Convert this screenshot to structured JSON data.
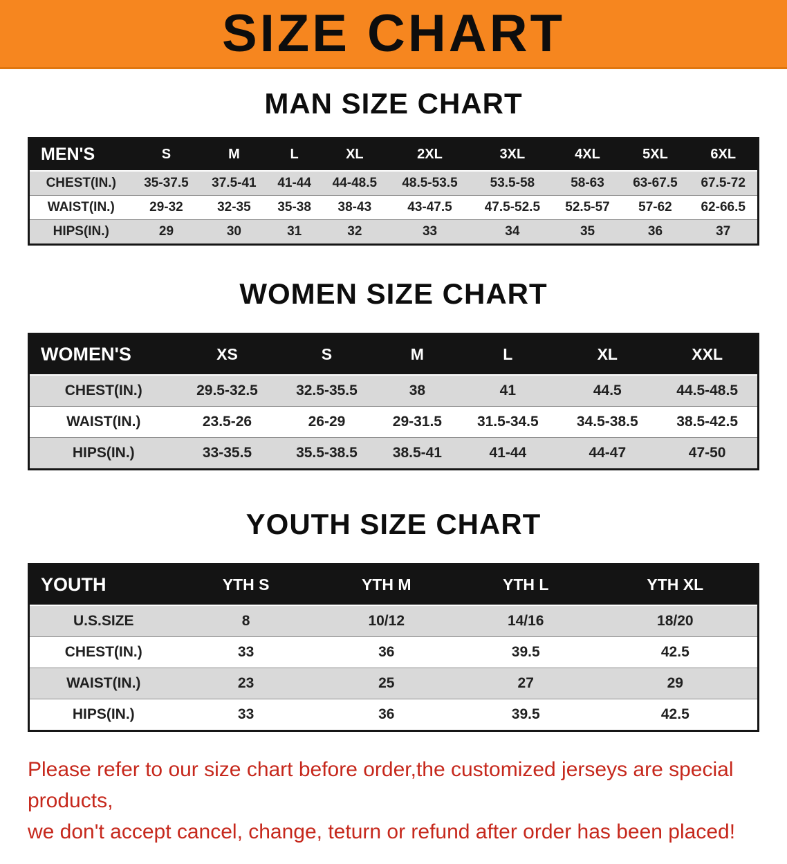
{
  "banner": {
    "title": "SIZE CHART"
  },
  "men": {
    "heading": "MAN SIZE CHART",
    "label": "MEN'S",
    "columns": [
      "S",
      "M",
      "L",
      "XL",
      "2XL",
      "3XL",
      "4XL",
      "5XL",
      "6XL"
    ],
    "rows": [
      {
        "label": "CHEST(IN.)",
        "values": [
          "35-37.5",
          "37.5-41",
          "41-44",
          "44-48.5",
          "48.5-53.5",
          "53.5-58",
          "58-63",
          "63-67.5",
          "67.5-72"
        ]
      },
      {
        "label": "WAIST(IN.)",
        "values": [
          "29-32",
          "32-35",
          "35-38",
          "38-43",
          "43-47.5",
          "47.5-52.5",
          "52.5-57",
          "57-62",
          "62-66.5"
        ]
      },
      {
        "label": "HIPS(IN.)",
        "values": [
          "29",
          "30",
          "31",
          "32",
          "33",
          "34",
          "35",
          "36",
          "37"
        ]
      }
    ]
  },
  "women": {
    "heading": "WOMEN SIZE CHART",
    "label": "WOMEN'S",
    "columns": [
      "XS",
      "S",
      "M",
      "L",
      "XL",
      "XXL"
    ],
    "rows": [
      {
        "label": "CHEST(IN.)",
        "values": [
          "29.5-32.5",
          "32.5-35.5",
          "38",
          "41",
          "44.5",
          "44.5-48.5"
        ]
      },
      {
        "label": "WAIST(IN.)",
        "values": [
          "23.5-26",
          "26-29",
          "29-31.5",
          "31.5-34.5",
          "34.5-38.5",
          "38.5-42.5"
        ]
      },
      {
        "label": "HIPS(IN.)",
        "values": [
          "33-35.5",
          "35.5-38.5",
          "38.5-41",
          "41-44",
          "44-47",
          "47-50"
        ]
      }
    ]
  },
  "youth": {
    "heading": "YOUTH SIZE CHART",
    "label": "YOUTH",
    "columns": [
      "YTH S",
      "YTH M",
      "YTH L",
      "YTH XL"
    ],
    "rows": [
      {
        "label": "U.S.SIZE",
        "values": [
          "8",
          "10/12",
          "14/16",
          "18/20"
        ]
      },
      {
        "label": "CHEST(IN.)",
        "values": [
          "33",
          "36",
          "39.5",
          "42.5"
        ]
      },
      {
        "label": "WAIST(IN.)",
        "values": [
          "23",
          "25",
          "27",
          "29"
        ]
      },
      {
        "label": "HIPS(IN.)",
        "values": [
          "33",
          "36",
          "39.5",
          "42.5"
        ]
      }
    ]
  },
  "disclaimer": {
    "line1": "Please refer to our size chart before order,the customized jerseys are special products,",
    "line2": "we don't accept cancel, change, teturn or refund after order has been placed!"
  },
  "colors": {
    "banner_bg": "#f6861f",
    "banner_edge": "#e0760e",
    "header_bg": "#141414",
    "stripe": "#d9d9d9",
    "disclaimer": "#c6281c"
  }
}
